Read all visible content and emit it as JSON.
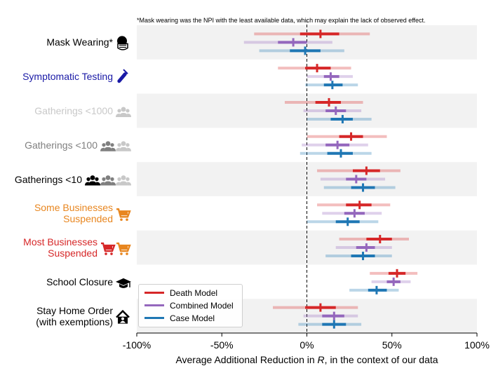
{
  "footnote": "*Mask wearing was the NPI with the least available data, which may explain the lack of observed effect.",
  "chart_data": {
    "type": "forest",
    "xlabel": "Average Additional Reduction in R, in the context of our data",
    "xlim": [
      -100,
      100
    ],
    "xticks": [
      "-100%",
      "-50%",
      "0%",
      "50%",
      "100%"
    ],
    "xtick_values": [
      -100,
      -50,
      0,
      50,
      100
    ],
    "reference_line": 0,
    "legend_placement": "bottom-left",
    "series": [
      {
        "name": "Death Model",
        "color": "#d62728"
      },
      {
        "name": "Combined Model",
        "color": "#9467bd"
      },
      {
        "name": "Case Model",
        "color": "#1f77b4"
      }
    ],
    "rows": [
      {
        "label": "Mask Wearing*",
        "color": "#000000",
        "icons": [
          "mask-icon"
        ],
        "estimates": [
          {
            "series": "Death Model",
            "median": 8,
            "iqr": [
              -4,
              19
            ],
            "ci": [
              -31,
              37
            ]
          },
          {
            "series": "Combined Model",
            "median": -8,
            "iqr": [
              -17,
              0
            ],
            "ci": [
              -37,
              15
            ]
          },
          {
            "series": "Case Model",
            "median": -1,
            "iqr": [
              -10,
              8
            ],
            "ci": [
              -28,
              22
            ]
          }
        ]
      },
      {
        "label": "Symptomatic Testing",
        "color": "#1a1aa6",
        "icons": [
          "test-tube-icon"
        ],
        "estimates": [
          {
            "series": "Death Model",
            "median": 6,
            "iqr": [
              -1,
              14
            ],
            "ci": [
              -17,
              26
            ]
          },
          {
            "series": "Combined Model",
            "median": 14,
            "iqr": [
              10,
              19
            ],
            "ci": [
              0,
              27
            ]
          },
          {
            "series": "Case Model",
            "median": 15,
            "iqr": [
              10,
              21
            ],
            "ci": [
              -1,
              30
            ]
          }
        ]
      },
      {
        "label": "Gatherings <1000",
        "color": "#c8c8c8",
        "icons": [
          "people-icon"
        ],
        "estimates": [
          {
            "series": "Death Model",
            "median": 13,
            "iqr": [
              5,
              20
            ],
            "ci": [
              -13,
              33
            ]
          },
          {
            "series": "Combined Model",
            "median": 17,
            "iqr": [
              11,
              23
            ],
            "ci": [
              -2,
              32
            ]
          },
          {
            "series": "Case Model",
            "median": 21,
            "iqr": [
              14,
              27
            ],
            "ci": [
              0,
              38
            ]
          }
        ]
      },
      {
        "label": "Gatherings <100",
        "color": "#7f7f7f",
        "icons": [
          "people-icon",
          "people-icon"
        ],
        "estimates": [
          {
            "series": "Death Model",
            "median": 26,
            "iqr": [
              19,
              33
            ],
            "ci": [
              0,
              47
            ]
          },
          {
            "series": "Combined Model",
            "median": 18,
            "iqr": [
              11,
              25
            ],
            "ci": [
              -3,
              36
            ]
          },
          {
            "series": "Case Model",
            "median": 20,
            "iqr": [
              12,
              27
            ],
            "ci": [
              -4,
              38
            ]
          }
        ]
      },
      {
        "label": "Gatherings <10",
        "color": "#000000",
        "icons": [
          "people-icon",
          "people-icon",
          "people-icon"
        ],
        "estimates": [
          {
            "series": "Death Model",
            "median": 35,
            "iqr": [
              27,
              43
            ],
            "ci": [
              6,
              55
            ]
          },
          {
            "series": "Combined Model",
            "median": 29,
            "iqr": [
              23,
              35
            ],
            "ci": [
              8,
              46
            ]
          },
          {
            "series": "Case Model",
            "median": 33,
            "iqr": [
              26,
              40
            ],
            "ci": [
              10,
              52
            ]
          }
        ]
      },
      {
        "label": "Some Businesses\nSuspended",
        "color": "#e8861f",
        "icons": [
          "shopping-cart-icon"
        ],
        "estimates": [
          {
            "series": "Death Model",
            "median": 31,
            "iqr": [
              23,
              38
            ],
            "ci": [
              6,
              49
            ]
          },
          {
            "series": "Combined Model",
            "median": 28,
            "iqr": [
              22,
              34
            ],
            "ci": [
              9,
              44
            ]
          },
          {
            "series": "Case Model",
            "median": 24,
            "iqr": [
              17,
              31
            ],
            "ci": [
              0,
              42
            ]
          }
        ]
      },
      {
        "label": "Most Businesses\nSuspended",
        "color": "#d62728",
        "icons": [
          "shopping-cart-icon",
          "shopping-cart-icon"
        ],
        "estimates": [
          {
            "series": "Death Model",
            "median": 43,
            "iqr": [
              35,
              50
            ],
            "ci": [
              19,
              60
            ]
          },
          {
            "series": "Combined Model",
            "median": 35,
            "iqr": [
              29,
              40
            ],
            "ci": [
              17,
              50
            ]
          },
          {
            "series": "Case Model",
            "median": 33,
            "iqr": [
              26,
              40
            ],
            "ci": [
              11,
              50
            ]
          }
        ]
      },
      {
        "label": "School Closure",
        "color": "#000000",
        "icons": [
          "graduation-cap-icon"
        ],
        "estimates": [
          {
            "series": "Death Model",
            "median": 53,
            "iqr": [
              48,
              58
            ],
            "ci": [
              37,
              65
            ]
          },
          {
            "series": "Combined Model",
            "median": 51,
            "iqr": [
              47,
              55
            ],
            "ci": [
              38,
              61
            ]
          },
          {
            "series": "Case Model",
            "median": 41,
            "iqr": [
              36,
              47
            ],
            "ci": [
              25,
              54
            ]
          }
        ]
      },
      {
        "label": "Stay Home Order\n(with exemptions)",
        "color": "#000000",
        "icons": [
          "home-icon"
        ],
        "estimates": [
          {
            "series": "Death Model",
            "median": 8,
            "iqr": [
              -1,
              17
            ],
            "ci": [
              -20,
              30
            ]
          },
          {
            "series": "Combined Model",
            "median": 16,
            "iqr": [
              9,
              22
            ],
            "ci": [
              -2,
              30
            ]
          },
          {
            "series": "Case Model",
            "median": 16,
            "iqr": [
              9,
              23
            ],
            "ci": [
              -5,
              32
            ]
          }
        ]
      }
    ]
  }
}
